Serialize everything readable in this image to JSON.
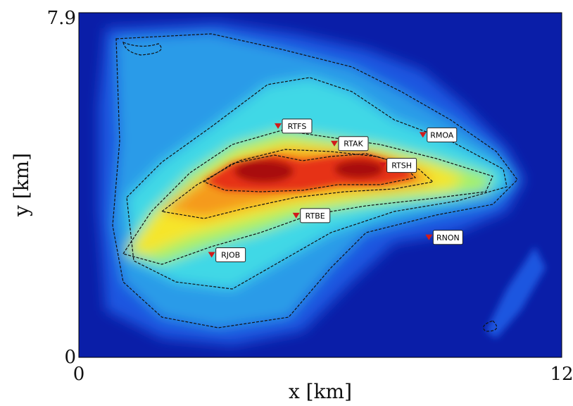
{
  "chart_data": {
    "type": "heatmap",
    "title": "",
    "xlabel": "x [km]",
    "ylabel": "y [km]",
    "xlim": [
      0,
      12
    ],
    "ylim": [
      0,
      7.9
    ],
    "x_ticks": [
      "0",
      "12"
    ],
    "y_ticks": [
      "0",
      "7.9"
    ],
    "colormap": "jet",
    "contour_lines": true,
    "grid": false,
    "stations": [
      {
        "name": "RTFS",
        "x": 4.95,
        "y": 5.3
      },
      {
        "name": "RTAK",
        "x": 6.35,
        "y": 4.9
      },
      {
        "name": "RMOA",
        "x": 8.55,
        "y": 5.1
      },
      {
        "name": "RTSH",
        "x": 7.55,
        "y": 4.4
      },
      {
        "name": "RTBE",
        "x": 5.4,
        "y": 3.25
      },
      {
        "name": "RNON",
        "x": 8.7,
        "y": 2.75
      },
      {
        "name": "RJOB",
        "x": 3.3,
        "y": 2.35
      }
    ]
  }
}
